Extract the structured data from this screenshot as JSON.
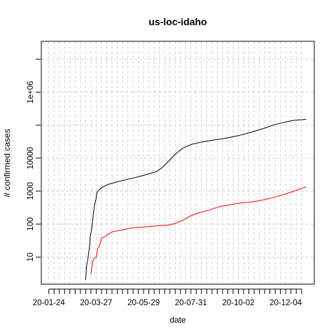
{
  "chart_data": {
    "type": "line",
    "title": "us-loc-idaho",
    "xlabel": "date",
    "ylabel": "# confirmed cases",
    "y_scale": "log",
    "y_ticks": [
      {
        "value": 10,
        "label": "10"
      },
      {
        "value": 100,
        "label": "100"
      },
      {
        "value": 1000,
        "label": "1000"
      },
      {
        "value": 10000,
        "label": "10000"
      },
      {
        "value": 1000000,
        "label": "1e+06"
      }
    ],
    "x_tick_labels": [
      "20-01-24",
      "20-03-27",
      "20-05-29",
      "20-07-31",
      "20-10-02",
      "20-12-04"
    ],
    "x_start": "2020-01-24",
    "x_end": "2020-12-31",
    "xlim": [
      "2020-01-14",
      "2021-01-11"
    ],
    "ylim": [
      1.5,
      35000000
    ],
    "grid": true,
    "series": [
      {
        "color": "#000000",
        "points": [
          [
            "2020-03-13",
            2
          ],
          [
            "2020-03-14",
            5
          ],
          [
            "2020-03-16",
            9
          ],
          [
            "2020-03-18",
            20
          ],
          [
            "2020-03-19",
            40
          ],
          [
            "2020-03-21",
            70
          ],
          [
            "2020-03-23",
            180
          ],
          [
            "2020-03-24",
            280
          ],
          [
            "2020-03-25",
            400
          ],
          [
            "2020-03-27",
            600
          ],
          [
            "2020-03-28",
            900
          ],
          [
            "2020-03-31",
            1100
          ],
          [
            "2020-04-04",
            1300
          ],
          [
            "2020-04-08",
            1450
          ],
          [
            "2020-04-12",
            1600
          ],
          [
            "2020-04-20",
            1800
          ],
          [
            "2020-05-01",
            2100
          ],
          [
            "2020-05-15",
            2500
          ],
          [
            "2020-05-29",
            3000
          ],
          [
            "2020-06-08",
            3500
          ],
          [
            "2020-06-15",
            3900
          ],
          [
            "2020-06-22",
            5000
          ],
          [
            "2020-07-01",
            8000
          ],
          [
            "2020-07-10",
            13000
          ],
          [
            "2020-07-20",
            20000
          ],
          [
            "2020-07-31",
            26000
          ],
          [
            "2020-08-15",
            31000
          ],
          [
            "2020-09-01",
            36000
          ],
          [
            "2020-09-15",
            40000
          ],
          [
            "2020-10-02",
            48000
          ],
          [
            "2020-10-20",
            62000
          ],
          [
            "2020-11-05",
            80000
          ],
          [
            "2020-11-20",
            105000
          ],
          [
            "2020-12-04",
            125000
          ],
          [
            "2020-12-15",
            140000
          ],
          [
            "2020-12-31",
            150000
          ]
        ]
      },
      {
        "color": "#ff0000",
        "points": [
          [
            "2020-03-20",
            3
          ],
          [
            "2020-03-22",
            7
          ],
          [
            "2020-03-24",
            9
          ],
          [
            "2020-03-27",
            10
          ],
          [
            "2020-03-29",
            18
          ],
          [
            "2020-04-01",
            25
          ],
          [
            "2020-04-03",
            38
          ],
          [
            "2020-04-08",
            42
          ],
          [
            "2020-04-12",
            50
          ],
          [
            "2020-04-17",
            58
          ],
          [
            "2020-04-25",
            63
          ],
          [
            "2020-05-05",
            70
          ],
          [
            "2020-05-15",
            78
          ],
          [
            "2020-05-29",
            82
          ],
          [
            "2020-06-08",
            86
          ],
          [
            "2020-06-20",
            90
          ],
          [
            "2020-07-01",
            93
          ],
          [
            "2020-07-10",
            105
          ],
          [
            "2020-07-20",
            130
          ],
          [
            "2020-07-31",
            180
          ],
          [
            "2020-08-10",
            220
          ],
          [
            "2020-08-25",
            270
          ],
          [
            "2020-09-05",
            330
          ],
          [
            "2020-09-20",
            380
          ],
          [
            "2020-10-02",
            430
          ],
          [
            "2020-10-20",
            470
          ],
          [
            "2020-11-01",
            520
          ],
          [
            "2020-11-15",
            620
          ],
          [
            "2020-12-01",
            780
          ],
          [
            "2020-12-15",
            1000
          ],
          [
            "2020-12-31",
            1350
          ]
        ]
      }
    ]
  }
}
